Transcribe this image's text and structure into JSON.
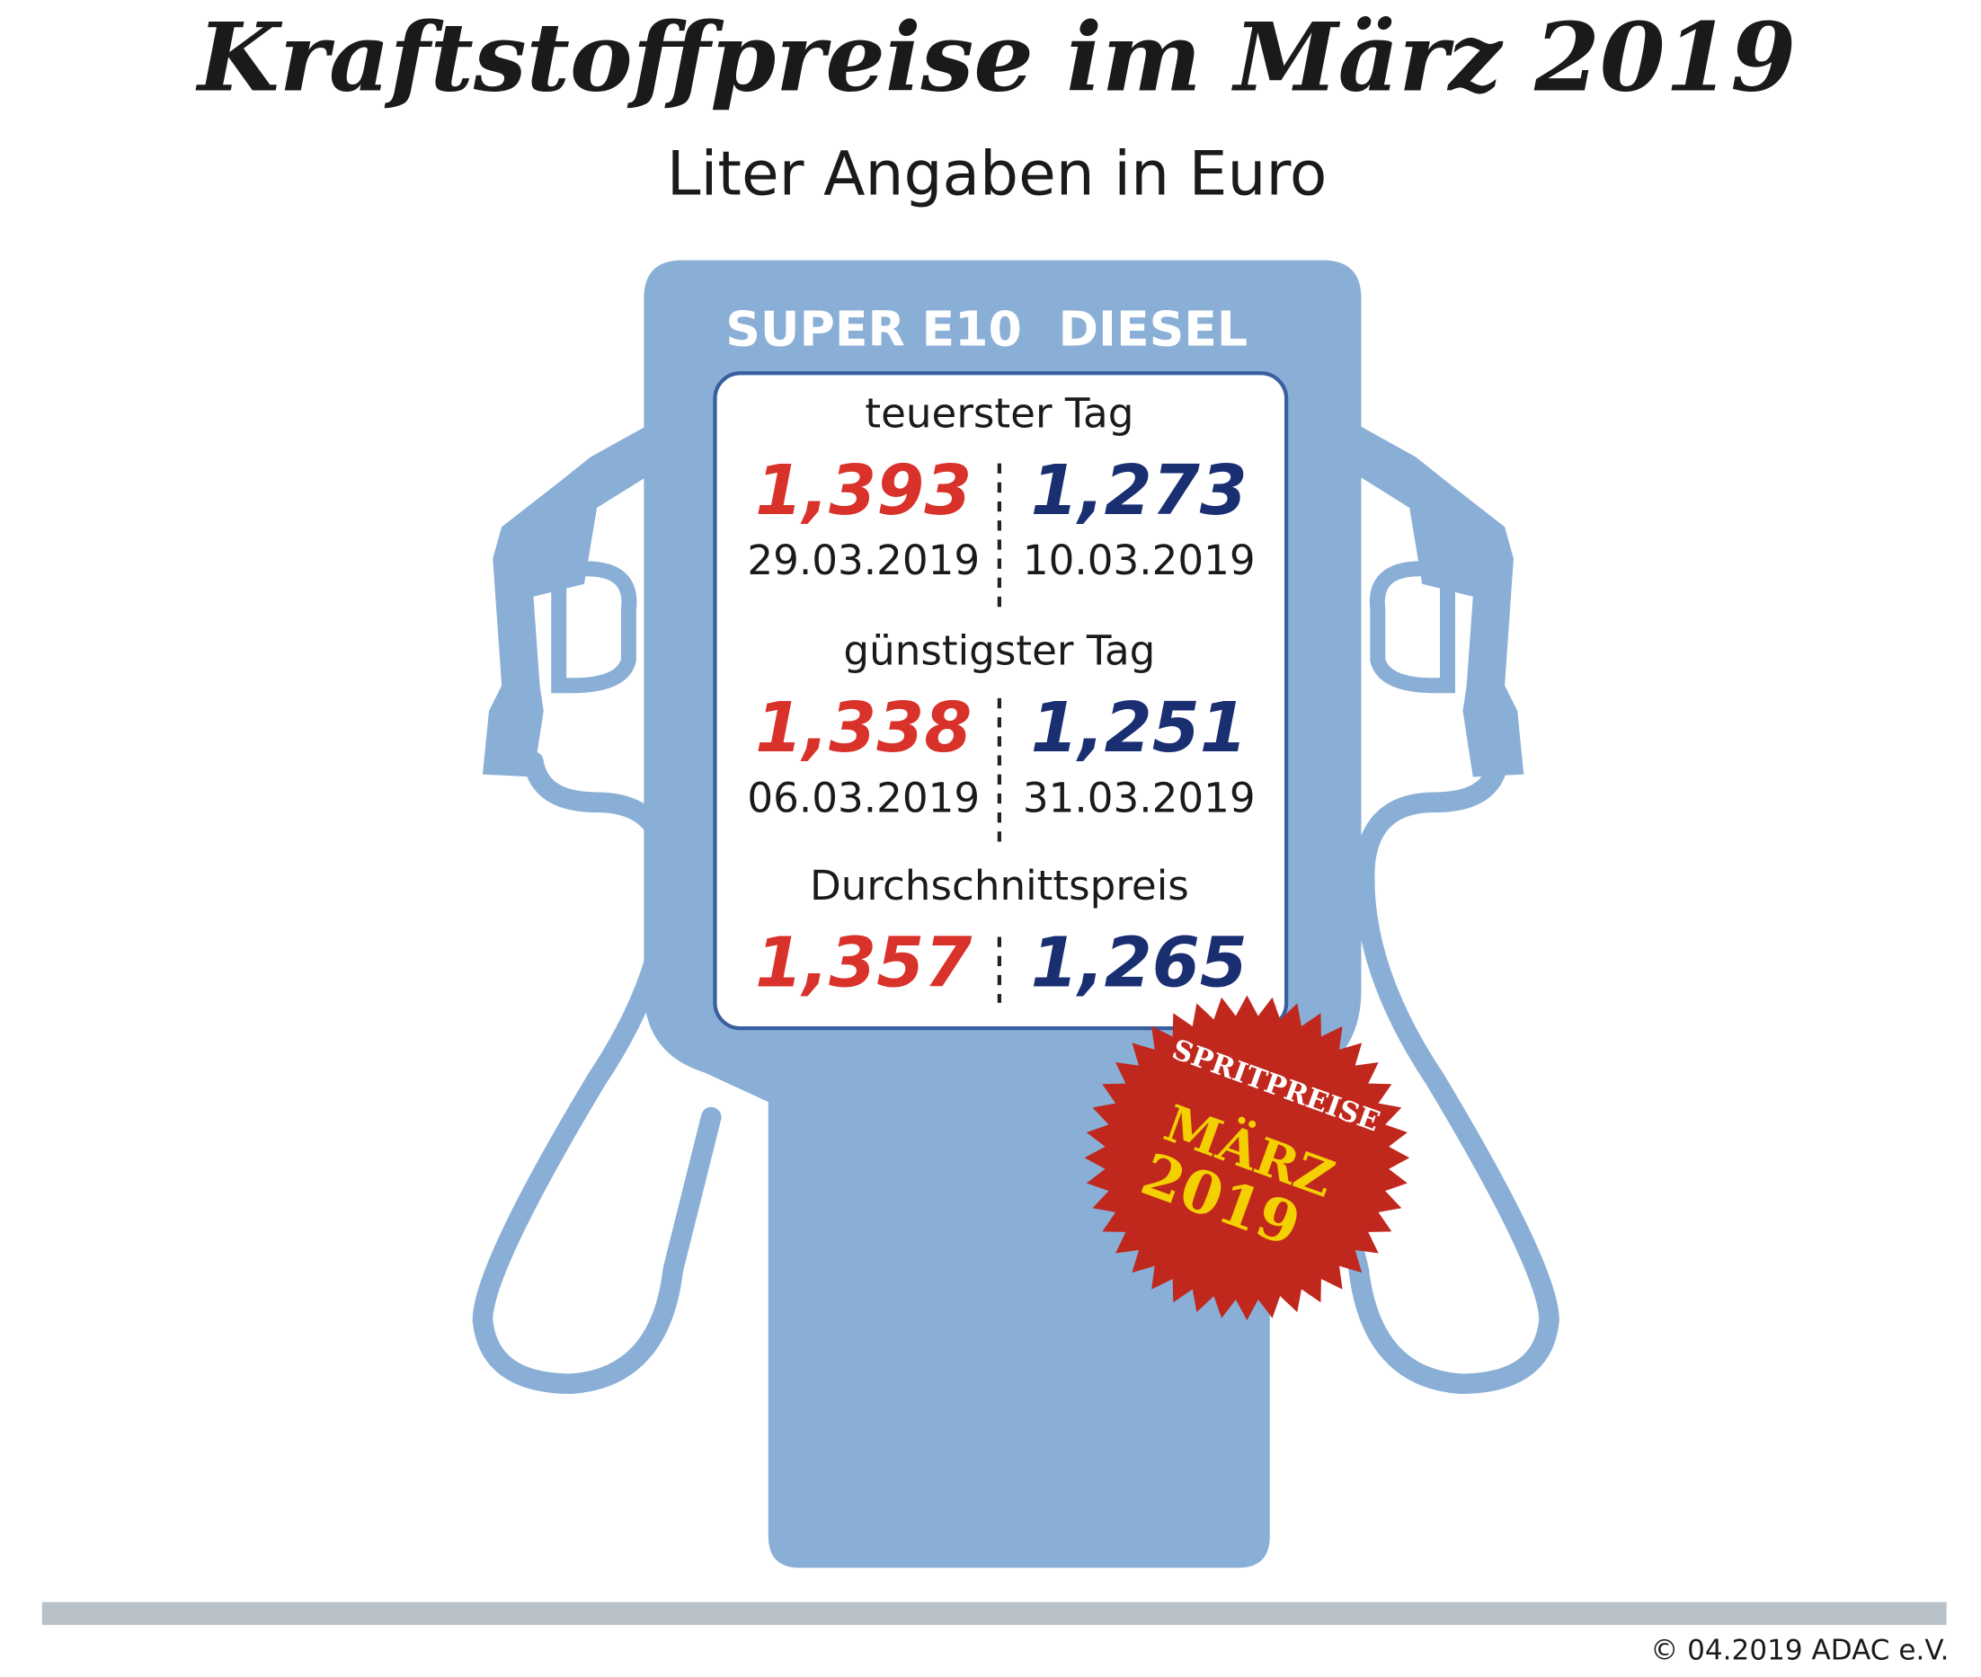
{
  "header": {
    "title": "Kraftstoffpreise im März 2019",
    "subtitle": "Liter Angaben in Euro"
  },
  "columns": [
    "SUPER E10",
    "DIESEL"
  ],
  "sections": [
    {
      "label": "teuerster Tag",
      "values": [
        "1,393",
        "1,273"
      ],
      "dates": [
        "29.03.2019",
        "10.03.2019"
      ]
    },
    {
      "label": "günstigster Tag",
      "values": [
        "1,338",
        "1,251"
      ],
      "dates": [
        "06.03.2019",
        "31.03.2019"
      ]
    },
    {
      "label": "Durchschnittspreis",
      "values": [
        "1,357",
        "1,265"
      ]
    }
  ],
  "badge": {
    "line1": "SPRITPREISE",
    "line2": "MÄRZ",
    "line3": "2019"
  },
  "footer": "© 04.2019  ADAC e.V."
}
